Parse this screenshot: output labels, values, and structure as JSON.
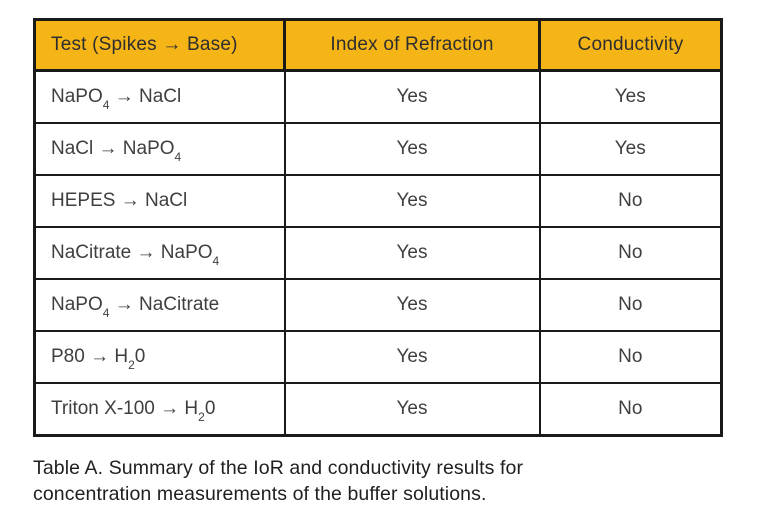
{
  "table": {
    "header": {
      "col_test": "Test (Spikes → Base)",
      "col_ior": "Index of Refraction",
      "col_cond": "Conductivity"
    },
    "rows": [
      {
        "test": [
          [
            "t",
            "NaPO"
          ],
          [
            "s",
            "4"
          ],
          [
            "t",
            " → NaCl"
          ]
        ],
        "ior": "Yes",
        "cond": "Yes"
      },
      {
        "test": [
          [
            "t",
            "NaCl → NaPO"
          ],
          [
            "s",
            "4"
          ]
        ],
        "ior": "Yes",
        "cond": "Yes"
      },
      {
        "test": [
          [
            "t",
            "HEPES → NaCl"
          ]
        ],
        "ior": "Yes",
        "cond": "No"
      },
      {
        "test": [
          [
            "t",
            "NaCitrate → NaPO"
          ],
          [
            "s",
            "4"
          ]
        ],
        "ior": "Yes",
        "cond": "No"
      },
      {
        "test": [
          [
            "t",
            "NaPO"
          ],
          [
            "s",
            "4"
          ],
          [
            "t",
            " → NaCitrate"
          ]
        ],
        "ior": "Yes",
        "cond": "No"
      },
      {
        "test": [
          [
            "t",
            "P80 → H"
          ],
          [
            "s",
            "2"
          ],
          [
            "t",
            "0"
          ]
        ],
        "ior": "Yes",
        "cond": "No"
      },
      {
        "test": [
          [
            "t",
            "Triton X-100 → H"
          ],
          [
            "s",
            "2"
          ],
          [
            "t",
            "0"
          ]
        ],
        "ior": "Yes",
        "cond": "No"
      }
    ]
  },
  "caption": "Table A. Summary of the IoR and conductivity results for concentration measurements of the buffer solutions.",
  "colors": {
    "header_bg": "#F5B517",
    "border": "#1A1A1A",
    "header_text": "#2E2E2E",
    "body_text": "#3F3F3F",
    "caption_text": "#1F1F1F"
  }
}
